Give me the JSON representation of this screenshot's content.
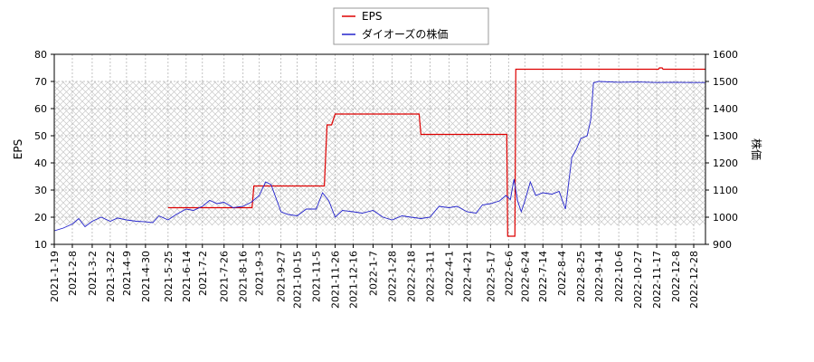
{
  "chart_data": {
    "type": "line",
    "legend": {
      "placement": "top-center",
      "entries": [
        "EPS",
        "ダイオーズの株価"
      ]
    },
    "colors": {
      "eps": "#dd0000",
      "price": "#2222cc",
      "grid": "#b4b4b4",
      "hatch": "#c8c8c8"
    },
    "left_axis": {
      "label": "EPS",
      "ylim": [
        10,
        80
      ],
      "ticks": [
        "10",
        "20",
        "30",
        "40",
        "50",
        "60",
        "70",
        "80"
      ]
    },
    "right_axis": {
      "label": "株価",
      "ylim": [
        900,
        1600
      ],
      "ticks": [
        "900",
        "1000",
        "1100",
        "1200",
        "1300",
        "1400",
        "1500",
        "1600"
      ]
    },
    "x_ticks": [
      "2021-1-19",
      "2021-2-8",
      "2021-3-2",
      "2021-3-22",
      "2021-4-9",
      "2021-4-30",
      "2021-5-25",
      "2021-6-14",
      "2021-7-2",
      "2021-7-26",
      "2021-8-16",
      "2021-9-3",
      "2021-9-27",
      "2021-10-15",
      "2021-11-5",
      "2021-11-26",
      "2021-12-16",
      "2022-1-7",
      "2022-1-28",
      "2022-2-18",
      "2022-3-11",
      "2022-4-1",
      "2022-4-21",
      "2022-5-17",
      "2022-6-6",
      "2022-6-24",
      "2022-7-14",
      "2022-8-4",
      "2022-8-25",
      "2022-9-14",
      "2022-10-6",
      "2022-10-27",
      "2022-11-17",
      "2022-12-8",
      "2022-12-28"
    ],
    "grid": true,
    "hatched_band": {
      "y_from": 17,
      "y_to": 70,
      "axis": "left"
    },
    "series": [
      {
        "name": "EPS",
        "axis": "left",
        "points": [
          [
            "2021-5-25",
            23.5
          ],
          [
            "2021-8-26",
            23.5
          ],
          [
            "2021-8-28",
            31.5
          ],
          [
            "2021-11-14",
            31.5
          ],
          [
            "2021-11-17",
            54
          ],
          [
            "2021-11-22",
            54
          ],
          [
            "2021-11-26",
            58
          ],
          [
            "2022-2-27",
            58
          ],
          [
            "2022-3-1",
            50.5
          ],
          [
            "2022-6-4",
            50.5
          ],
          [
            "2022-6-5",
            13
          ],
          [
            "2022-6-13",
            13
          ],
          [
            "2022-6-14",
            74.5
          ],
          [
            "2022-11-19",
            74.5
          ],
          [
            "2022-11-20",
            75
          ],
          [
            "2022-11-23",
            75
          ],
          [
            "2022-11-24",
            74.5
          ],
          [
            "2023-1-10",
            74.5
          ]
        ]
      },
      {
        "name": "ダイオーズの株価",
        "axis": "right",
        "points": [
          [
            "2021-1-19",
            950
          ],
          [
            "2021-1-29",
            960
          ],
          [
            "2021-2-8",
            975
          ],
          [
            "2021-2-15",
            995
          ],
          [
            "2021-2-22",
            965
          ],
          [
            "2021-3-2",
            985
          ],
          [
            "2021-3-12",
            1000
          ],
          [
            "2021-3-22",
            985
          ],
          [
            "2021-3-30",
            997
          ],
          [
            "2021-4-9",
            990
          ],
          [
            "2021-4-20",
            985
          ],
          [
            "2021-4-30",
            983
          ],
          [
            "2021-5-8",
            980
          ],
          [
            "2021-5-15",
            1005
          ],
          [
            "2021-5-25",
            990
          ],
          [
            "2021-6-3",
            1010
          ],
          [
            "2021-6-14",
            1030
          ],
          [
            "2021-6-22",
            1025
          ],
          [
            "2021-7-2",
            1040
          ],
          [
            "2021-7-10",
            1062
          ],
          [
            "2021-7-18",
            1050
          ],
          [
            "2021-7-26",
            1055
          ],
          [
            "2021-8-5",
            1035
          ],
          [
            "2021-8-16",
            1040
          ],
          [
            "2021-8-25",
            1055
          ],
          [
            "2021-9-3",
            1080
          ],
          [
            "2021-9-10",
            1130
          ],
          [
            "2021-9-16",
            1120
          ],
          [
            "2021-9-27",
            1020
          ],
          [
            "2021-10-5",
            1010
          ],
          [
            "2021-10-15",
            1005
          ],
          [
            "2021-10-25",
            1030
          ],
          [
            "2021-11-5",
            1030
          ],
          [
            "2021-11-12",
            1090
          ],
          [
            "2021-11-19",
            1060
          ],
          [
            "2021-11-26",
            1000
          ],
          [
            "2021-12-4",
            1025
          ],
          [
            "2021-12-16",
            1020
          ],
          [
            "2021-12-26",
            1015
          ],
          [
            "2022-1-7",
            1025
          ],
          [
            "2022-1-18",
            1000
          ],
          [
            "2022-1-28",
            990
          ],
          [
            "2022-2-8",
            1005
          ],
          [
            "2022-2-18",
            1000
          ],
          [
            "2022-3-1",
            995
          ],
          [
            "2022-3-11",
            1000
          ],
          [
            "2022-3-21",
            1040
          ],
          [
            "2022-4-1",
            1035
          ],
          [
            "2022-4-10",
            1040
          ],
          [
            "2022-4-21",
            1020
          ],
          [
            "2022-5-1",
            1015
          ],
          [
            "2022-5-8",
            1045
          ],
          [
            "2022-5-17",
            1050
          ],
          [
            "2022-5-27",
            1060
          ],
          [
            "2022-6-3",
            1080
          ],
          [
            "2022-6-8",
            1065
          ],
          [
            "2022-6-12",
            1140
          ],
          [
            "2022-6-16",
            1060
          ],
          [
            "2022-6-20",
            1020
          ],
          [
            "2022-6-24",
            1060
          ],
          [
            "2022-6-30",
            1130
          ],
          [
            "2022-7-6",
            1080
          ],
          [
            "2022-7-14",
            1090
          ],
          [
            "2022-7-24",
            1085
          ],
          [
            "2022-8-1",
            1095
          ],
          [
            "2022-8-8",
            1030
          ],
          [
            "2022-8-15",
            1220
          ],
          [
            "2022-8-20",
            1250
          ],
          [
            "2022-8-25",
            1290
          ],
          [
            "2022-9-1",
            1300
          ],
          [
            "2022-9-5",
            1360
          ],
          [
            "2022-9-8",
            1495
          ],
          [
            "2022-9-14",
            1500
          ],
          [
            "2022-10-6",
            1497
          ],
          [
            "2022-10-27",
            1498
          ],
          [
            "2022-11-17",
            1496
          ],
          [
            "2022-12-8",
            1497
          ],
          [
            "2022-12-28",
            1496
          ],
          [
            "2023-1-10",
            1496
          ]
        ]
      }
    ]
  }
}
